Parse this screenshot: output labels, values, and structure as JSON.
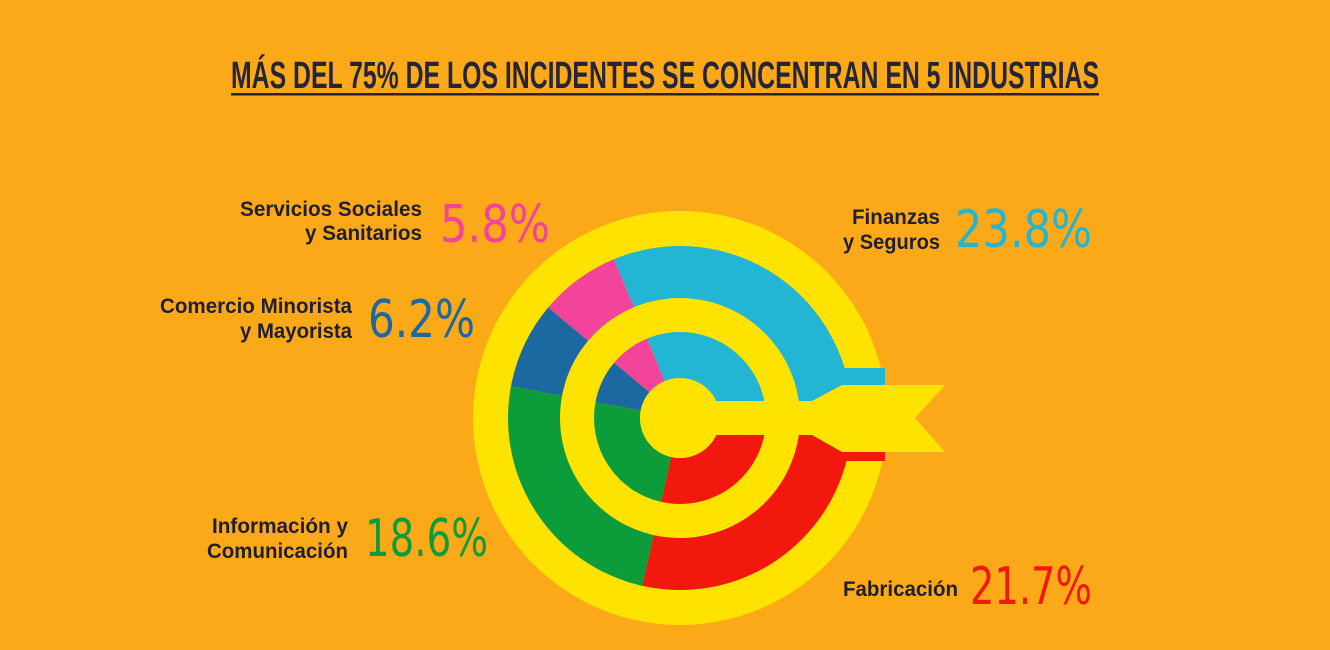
{
  "chart_data": {
    "type": "pie",
    "title": "MÁS DEL 75% DE LOS INCIDENTES SE CONCENTRAN EN 5 INDUSTRIAS",
    "unit": "%",
    "slices": [
      {
        "label_lines": [
          "Finanzas",
          "y Seguros"
        ],
        "value": 23.8,
        "color": "#22B5D4"
      },
      {
        "label_lines": [
          "Servicios Sociales",
          "y Sanitarios"
        ],
        "value": 5.8,
        "color": "#F2449A"
      },
      {
        "label_lines": [
          "Comercio Minorista",
          "y Mayorista"
        ],
        "value": 6.2,
        "color": "#1C69A2"
      },
      {
        "label_lines": [
          "Información y",
          "Comunicación"
        ],
        "value": 18.6,
        "color": "#0C9C3A"
      },
      {
        "label_lines": [
          "Fabricación"
        ],
        "value": 21.7,
        "color": "#F3180E"
      }
    ]
  },
  "colors": {
    "background": "#FBA918",
    "target": "#FFE300",
    "text": "#25253A"
  }
}
